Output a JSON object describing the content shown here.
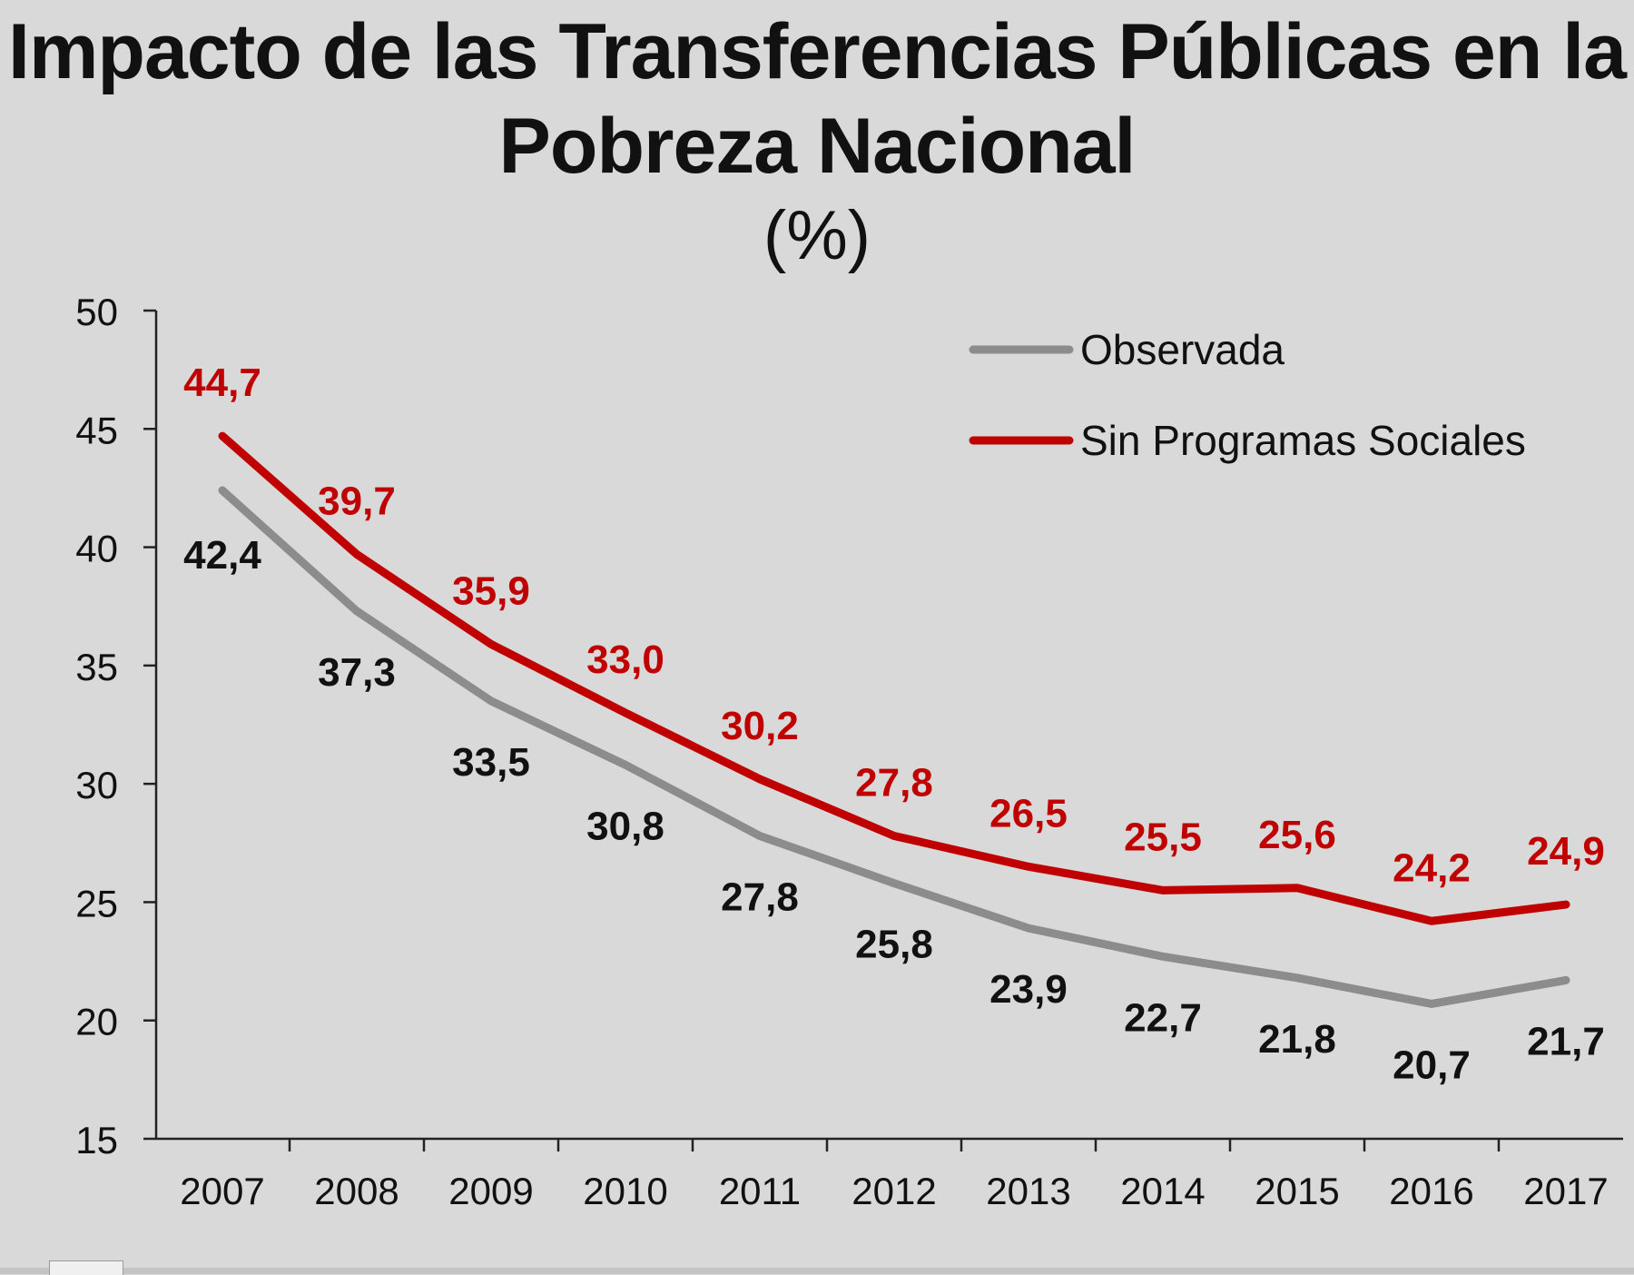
{
  "chart_data": {
    "type": "line",
    "title": "Impacto de las Transferencias Públicas en la Pobreza Nacional",
    "title_line1": "Impacto de las Transferencias Públicas en la",
    "title_line2": "Pobreza Nacional",
    "subtitle": "(%)",
    "xlabel": "",
    "ylabel": "",
    "ylim": [
      15,
      50
    ],
    "yticks": [
      15,
      20,
      25,
      30,
      35,
      40,
      45,
      50
    ],
    "categories": [
      "2007",
      "2008",
      "2009",
      "2010",
      "2011",
      "2012",
      "2013",
      "2014",
      "2015",
      "2016",
      "2017"
    ],
    "legend_position": "top-right",
    "series": [
      {
        "name": "Observada",
        "color": "#8c8c8c",
        "label_color": "#111111",
        "values": [
          42.4,
          37.3,
          33.5,
          30.8,
          27.8,
          25.8,
          23.9,
          22.7,
          21.8,
          20.7,
          21.7
        ],
        "labels": [
          "42,4",
          "37,3",
          "33,5",
          "30,8",
          "27,8",
          "25,8",
          "23,9",
          "22,7",
          "21,8",
          "20,7",
          "21,7"
        ]
      },
      {
        "name": "Sin Programas Sociales",
        "color": "#c00000",
        "label_color": "#c00000",
        "values": [
          44.7,
          39.7,
          35.9,
          33.0,
          30.2,
          27.8,
          26.5,
          25.5,
          25.6,
          24.2,
          24.9
        ],
        "labels": [
          "44,7",
          "39,7",
          "35,9",
          "33,0",
          "30,2",
          "27,8",
          "26,5",
          "25,5",
          "25,6",
          "24,2",
          "24,9"
        ]
      }
    ]
  }
}
